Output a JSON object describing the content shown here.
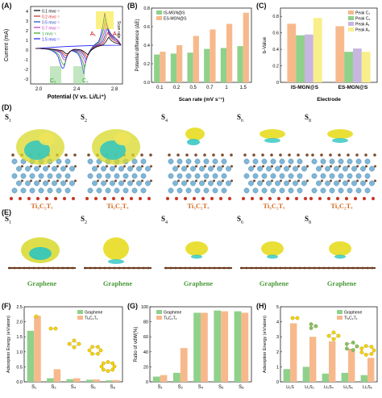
{
  "panels": {
    "A": "(A)",
    "B": "(B)",
    "C": "(C)",
    "D": "(D)",
    "E": "(E)",
    "F": "(F)",
    "G": "(G)",
    "H": "(H)"
  },
  "panelA": {
    "ylabel": "Current (mA)",
    "xlabel": "Potential (V vs. Li/Li⁺)",
    "xticks": [
      "2.0",
      "2.4",
      "2.8"
    ],
    "yticks": [
      "4",
      "3",
      "2",
      "1",
      "0",
      "-1",
      "-2",
      "-3"
    ],
    "legend": [
      "0.1 mvs⁻¹",
      "0.2 mvs⁻¹",
      "0.5 mvs⁻¹",
      "0.7 mvs⁻¹",
      "1 mvs⁻¹",
      "1.5 mvs⁻¹"
    ],
    "legend_colors": [
      "#000000",
      "#d62728",
      "#1f3fbf",
      "#c030c0",
      "#2ca02c",
      "#1a1aff"
    ],
    "tag_scan": "Scan rate",
    "peaks": [
      "A₁",
      "A₂",
      "C₁",
      "C₂"
    ]
  },
  "panelC": {
    "ylabel": "b-Value",
    "xlabel": "Electrode",
    "legend": [
      "Peak C₁",
      "Peak C₂",
      "Peak A₁",
      "Peak A₂"
    ],
    "legend_colors": [
      "#f7b98c",
      "#8fd18a",
      "#c8b6e0",
      "#f8ef8a"
    ]
  },
  "chart_data": [
    {
      "type": "bar",
      "title": "",
      "xlabel": "Scan rate (mV s⁻¹)",
      "ylabel": "Potential difference (ΔE)",
      "categories": [
        "0.1",
        "0.2",
        "0.5",
        "0.7",
        "1",
        "1.5"
      ],
      "ylim": [
        0,
        0.8
      ],
      "yticks": [
        "0.0",
        "0.2",
        "0.4",
        "0.6",
        "0.8"
      ],
      "series": [
        {
          "name": "IS-MGN@S",
          "color": "#8fd18a",
          "values": [
            0.3,
            0.31,
            0.32,
            0.36,
            0.37,
            0.39
          ]
        },
        {
          "name": "ES-MGN@S",
          "color": "#f7b98c",
          "values": [
            0.33,
            0.4,
            0.5,
            0.57,
            0.63,
            0.75
          ]
        }
      ]
    },
    {
      "type": "bar",
      "title": "",
      "xlabel": "Electrode",
      "ylabel": "b-Value",
      "categories": [
        "IS-MGN@S",
        "ES-MGN@S"
      ],
      "ylim": [
        0,
        0.9
      ],
      "yticks": [
        "0",
        "0.2",
        "0.4",
        "0.6",
        "0.8"
      ],
      "series": [
        {
          "name": "Peak C₁",
          "color": "#f7b98c",
          "values": [
            0.71,
            0.68
          ]
        },
        {
          "name": "Peak C₂",
          "color": "#8fd18a",
          "values": [
            0.57,
            0.37
          ]
        },
        {
          "name": "Peak A₁",
          "color": "#c8b6e0",
          "values": [
            0.58,
            0.41
          ]
        },
        {
          "name": "Peak A₂",
          "color": "#f8ef8a",
          "values": [
            0.78,
            0.37
          ]
        }
      ]
    },
    {
      "type": "bar",
      "title": "",
      "xlabel": "",
      "ylabel": "Adsorption Energy (eV/atom)",
      "categories": [
        "S₁",
        "S₂",
        "S₄",
        "S₆",
        "S₈"
      ],
      "ylim": [
        0,
        2.5
      ],
      "yticks": [
        "0.0",
        "0.5",
        "1.0",
        "1.5",
        "2.0",
        "2.5"
      ],
      "series": [
        {
          "name": "Graphene",
          "color": "#8fd18a",
          "values": [
            1.7,
            0.12,
            0.09,
            0.07,
            0.05
          ]
        },
        {
          "name": "Ti₃C₂Tₓ",
          "color": "#f7b98c",
          "values": [
            2.2,
            0.42,
            0.12,
            0.08,
            0.06
          ]
        }
      ]
    },
    {
      "type": "bar",
      "title": "",
      "xlabel": "",
      "ylabel": "Ratio of vdW(%)",
      "categories": [
        "S₁",
        "S₂",
        "S₄",
        "S₆",
        "S₈"
      ],
      "ylim": [
        0,
        100
      ],
      "yticks": [
        "0",
        "20",
        "40",
        "60",
        "80",
        "100"
      ],
      "series": [
        {
          "name": "Graphene",
          "color": "#8fd18a",
          "values": [
            7,
            12,
            92,
            95,
            94
          ]
        },
        {
          "name": "Ti₃C₂Tₓ",
          "color": "#f7b98c",
          "values": [
            9,
            45,
            92,
            94,
            92
          ]
        }
      ]
    },
    {
      "type": "bar",
      "title": "",
      "xlabel": "",
      "ylabel": "Adsorption Energy (eV/atom)",
      "categories": [
        "Li₂S",
        "Li₂S₂",
        "Li₂S₄",
        "Li₂S₆",
        "Li₂S₈"
      ],
      "ylim": [
        0,
        5
      ],
      "yticks": [
        "0",
        "1",
        "2",
        "3",
        "4",
        "5"
      ],
      "series": [
        {
          "name": "Graphene",
          "color": "#8fd18a",
          "values": [
            0.85,
            1.0,
            0.55,
            0.6,
            0.45
          ]
        },
        {
          "name": "Ti₃C₂Tₓ",
          "color": "#f7b98c",
          "values": [
            3.9,
            3.0,
            2.7,
            2.2,
            1.6
          ]
        }
      ]
    }
  ],
  "molecules_D": [
    {
      "name": "S",
      "sub": "1",
      "label": "Ti₃C₂Tₓ"
    },
    {
      "name": "S",
      "sub": "2",
      "label": "Ti₃C₂Tₓ"
    },
    {
      "name": "S",
      "sub": "4",
      "label": "Ti₃C₂Tₓ"
    },
    {
      "name": "S",
      "sub": "6",
      "label": "Ti₃C₂Tₓ"
    },
    {
      "name": "S",
      "sub": "8",
      "label": "Ti₃C₂Tₓ"
    }
  ],
  "molecules_E": [
    {
      "name": "S",
      "sub": "1",
      "label": "Graphene"
    },
    {
      "name": "S",
      "sub": "2",
      "label": "Graphene"
    },
    {
      "name": "S",
      "sub": "4",
      "label": "Graphene"
    },
    {
      "name": "S",
      "sub": "6",
      "label": "Graphene"
    },
    {
      "name": "S",
      "sub": "8",
      "label": "Graphene"
    }
  ]
}
